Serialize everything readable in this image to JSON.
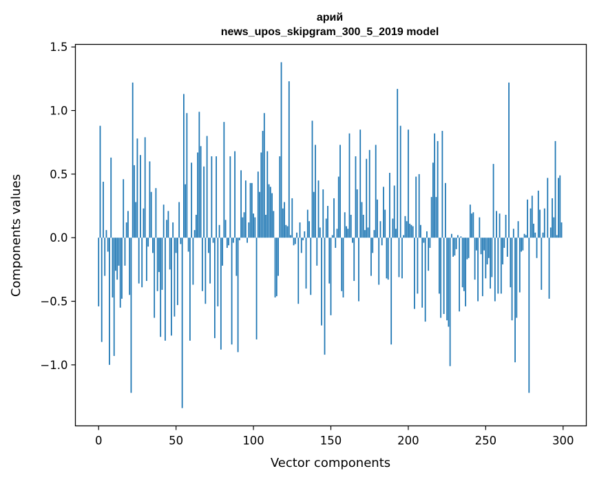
{
  "chart_data": {
    "type": "bar",
    "title": "арий",
    "subtitle": "news_upos_skipgram_300_5_2019 model",
    "xlabel": "Vector components",
    "ylabel": "Components values",
    "xlim": [
      -15,
      315
    ],
    "ylim": [
      -1.48,
      1.52
    ],
    "xticks": [
      0,
      50,
      100,
      150,
      200,
      250,
      300
    ],
    "xtick_labels": [
      "0",
      "50",
      "100",
      "150",
      "200",
      "250",
      "300"
    ],
    "yticks": [
      -1.0,
      -0.5,
      0.0,
      0.5,
      1.0,
      1.5
    ],
    "ytick_labels": [
      "−1.0",
      "−0.5",
      "0.0",
      "0.5",
      "1.0",
      "1.5"
    ],
    "grid": false,
    "bar_color": "#1f77b4",
    "values": [
      -0.54,
      0.88,
      -0.82,
      0.44,
      -0.3,
      0.06,
      -0.11,
      -1.0,
      0.63,
      -0.47,
      -0.93,
      -0.26,
      -0.33,
      -0.22,
      -0.55,
      -0.48,
      0.46,
      -0.22,
      0.12,
      0.21,
      -0.45,
      -1.22,
      1.22,
      0.57,
      0.28,
      0.78,
      -0.36,
      0.65,
      -0.39,
      0.23,
      0.79,
      -0.34,
      -0.07,
      0.6,
      0.36,
      -0.12,
      -0.63,
      0.39,
      -0.42,
      -0.27,
      -0.78,
      -0.41,
      0.26,
      -0.81,
      0.14,
      0.21,
      -0.25,
      -0.77,
      0.12,
      -0.62,
      -0.12,
      -0.53,
      0.28,
      -0.05,
      -1.34,
      1.13,
      0.42,
      0.98,
      -0.11,
      -0.81,
      0.59,
      -0.37,
      0.06,
      0.18,
      0.67,
      0.99,
      0.72,
      -0.42,
      0.56,
      -0.52,
      0.8,
      -0.12,
      -0.36,
      0.64,
      -0.04,
      -0.79,
      0.64,
      -0.54,
      0.1,
      -0.88,
      -0.22,
      0.91,
      0.14,
      -0.08,
      -0.06,
      0.64,
      -0.84,
      -0.04,
      0.68,
      -0.3,
      -0.9,
      -0.02,
      0.53,
      0.16,
      0.2,
      0.45,
      -0.04,
      0.12,
      0.43,
      0.43,
      0.19,
      0.16,
      -0.8,
      0.52,
      0.36,
      0.67,
      0.84,
      0.98,
      0.18,
      0.68,
      0.42,
      0.4,
      0.35,
      0.21,
      -0.47,
      -0.46,
      -0.3,
      0.64,
      1.38,
      0.23,
      0.28,
      0.1,
      0.09,
      1.23,
      0.02,
      0.31,
      -0.06,
      -0.05,
      0.04,
      -0.52,
      0.12,
      -0.12,
      -0.02,
      0.05,
      -0.4,
      0.22,
      0.13,
      -0.45,
      0.92,
      0.36,
      0.73,
      -0.22,
      0.45,
      0.08,
      -0.69,
      0.38,
      -0.92,
      0.15,
      0.25,
      -0.36,
      -0.61,
      0.02,
      0.31,
      -0.08,
      0.07,
      0.48,
      0.73,
      -0.42,
      -0.47,
      0.2,
      0.09,
      0.07,
      0.82,
      0.18,
      -0.04,
      -0.34,
      0.64,
      0.38,
      -0.5,
      0.85,
      0.28,
      0.18,
      0.06,
      0.62,
      0.08,
      0.69,
      -0.3,
      -0.12,
      0.06,
      0.73,
      0.3,
      -0.37,
      0.13,
      -0.06,
      0.4,
      0.22,
      -0.32,
      -0.33,
      0.51,
      -0.84,
      0.15,
      0.41,
      0.07,
      1.17,
      -0.31,
      0.88,
      -0.32,
      0.02,
      0.17,
      0.13,
      0.85,
      0.11,
      0.1,
      0.09,
      -0.56,
      0.48,
      -0.44,
      0.5,
      0.1,
      -0.55,
      -0.04,
      -0.66,
      0.05,
      -0.26,
      -0.08,
      0.32,
      0.59,
      0.82,
      0.32,
      0.76,
      -0.44,
      -0.63,
      0.84,
      -0.6,
      0.43,
      -0.65,
      -0.7,
      -1.01,
      0.03,
      -0.15,
      -0.14,
      -0.09,
      0.02,
      -0.58,
      0.01,
      -0.39,
      -0.42,
      -0.54,
      -0.17,
      -0.16,
      0.26,
      0.19,
      0.2,
      -0.33,
      -0.1,
      -0.5,
      0.16,
      -0.13,
      -0.46,
      -0.1,
      -0.32,
      -0.21,
      -0.16,
      -0.4,
      -0.31,
      0.58,
      -0.5,
      0.21,
      -0.44,
      0.19,
      -0.44,
      -0.21,
      -0.08,
      0.18,
      -0.15,
      1.22,
      -0.39,
      -0.65,
      0.07,
      -0.98,
      -0.63,
      0.13,
      -0.43,
      -0.11,
      -0.1,
      0.03,
      0.02,
      0.3,
      -1.22,
      0.23,
      0.33,
      0.11,
      0.04,
      -0.16,
      0.37,
      0.22,
      -0.41,
      0.04,
      0.23,
      0.0,
      0.47,
      -0.48,
      0.08,
      0.31,
      0.16,
      0.76,
      0.02,
      0.47,
      0.49,
      0.12
    ]
  }
}
